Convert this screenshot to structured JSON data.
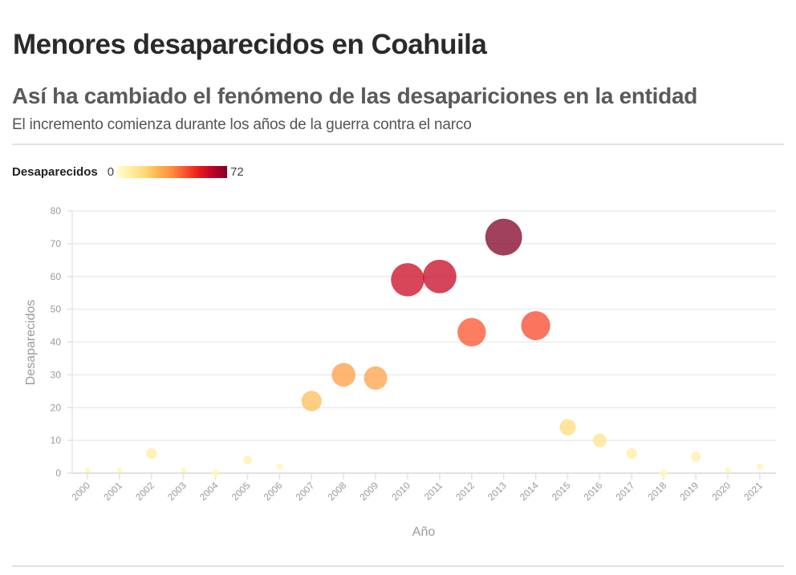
{
  "header": {
    "title": "Menores desaparecidos en Coahuila",
    "subtitle": "Así ha cambiado el fenómeno de las desapariciones en la entidad",
    "note": "El incremento comienza durante los años de la guerra contra el narco"
  },
  "legend": {
    "title": "Desaparecidos",
    "min_label": "0",
    "max_label": "72",
    "colors": [
      "#ffffcc",
      "#ffeda0",
      "#fed976",
      "#feb24c",
      "#fd8d3c",
      "#fc4e2a",
      "#e31a1c",
      "#bd0026",
      "#800026"
    ]
  },
  "chart_data": {
    "type": "scatter",
    "title": "Menores desaparecidos en Coahuila",
    "xlabel": "Año",
    "ylabel": "Desaparecidos",
    "ylim": [
      0,
      80
    ],
    "yticks": [
      0,
      10,
      20,
      30,
      40,
      50,
      60,
      70,
      80
    ],
    "grid": true,
    "legend_position": "top-left",
    "color_scale": {
      "name": "YlOrRd",
      "domain": [
        0,
        72
      ]
    },
    "x": [
      "2000",
      "2001",
      "2002",
      "2003",
      "2004",
      "2005",
      "2006",
      "2007",
      "2008",
      "2009",
      "2010",
      "2011",
      "2012",
      "2013",
      "2014",
      "2015",
      "2016",
      "2017",
      "2018",
      "2019",
      "2020",
      "2021"
    ],
    "values": [
      1,
      1,
      6,
      1,
      0,
      4,
      2,
      22,
      30,
      29,
      59,
      60,
      43,
      72,
      45,
      14,
      10,
      6,
      0,
      5,
      1,
      2
    ]
  }
}
